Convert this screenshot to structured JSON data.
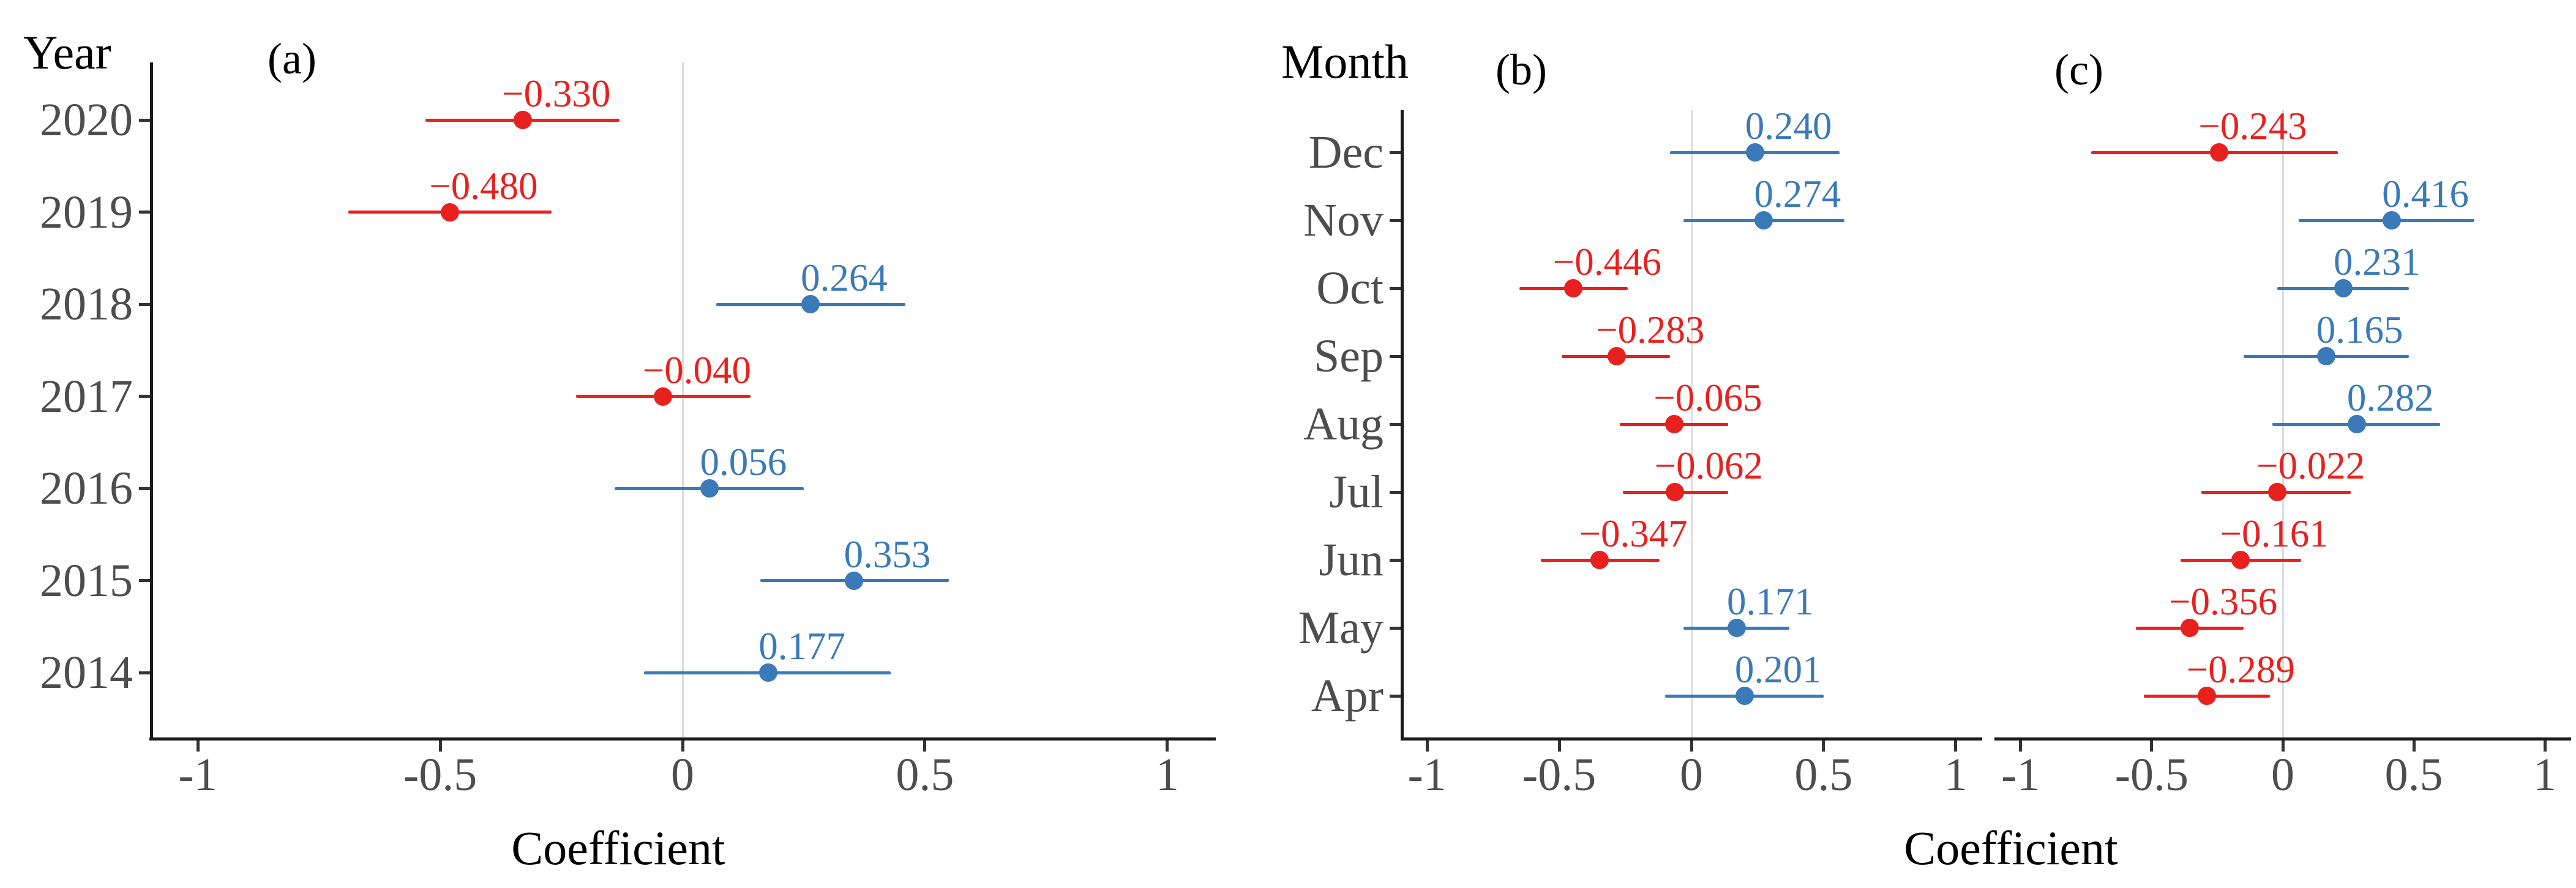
{
  "figure": {
    "left_axis_title": "Year",
    "right_axis_title": "Month",
    "left_xaxis_title": "Coefficient",
    "right_xaxis_title": "Coefficient"
  },
  "colors": {
    "positive": "#3a7ab8",
    "negative": "#e8201e",
    "axis": "#1a1a1a",
    "tick_label": "#4d4d4d",
    "gridline": "#dcdcdc"
  },
  "chart_data": [
    {
      "type": "scatter",
      "panel_label": "(a)",
      "ylabel": "Year",
      "xlabel": "Coefficient",
      "categories": [
        "2020",
        "2019",
        "2018",
        "2017",
        "2016",
        "2015",
        "2014"
      ],
      "values": [
        -0.33,
        -0.48,
        0.264,
        -0.04,
        0.056,
        0.353,
        0.177
      ],
      "value_labels": [
        "−0.330",
        "−0.480",
        "0.264",
        "−0.040",
        "0.056",
        "0.353",
        "0.177"
      ],
      "ci_low": [
        -0.53,
        -0.69,
        0.07,
        -0.22,
        -0.14,
        0.16,
        -0.08
      ],
      "ci_high": [
        -0.13,
        -0.27,
        0.46,
        0.14,
        0.25,
        0.55,
        0.43
      ],
      "xtick_values": [
        -1,
        -0.5,
        0,
        0.5,
        1
      ],
      "xtick_labels": [
        "-1",
        "-0.5",
        "0",
        "0.5",
        "1"
      ],
      "xlim": [
        -1.1,
        1.1
      ],
      "grid_zero_line": true,
      "legend": "none"
    },
    {
      "type": "scatter",
      "panel_label": "(b)",
      "ylabel": "Month",
      "xlabel": "Coefficient",
      "categories": [
        "Dec",
        "Nov",
        "Oct",
        "Sep",
        "Aug",
        "Jul",
        "Jun",
        "May",
        "Apr"
      ],
      "values": [
        0.24,
        0.274,
        -0.446,
        -0.283,
        -0.065,
        -0.062,
        -0.347,
        0.171,
        0.201
      ],
      "value_labels": [
        "0.240",
        "0.274",
        "−0.446",
        "−0.283",
        "−0.065",
        "−0.062",
        "−0.347",
        "0.171",
        "0.201"
      ],
      "ci_low": [
        -0.08,
        -0.03,
        -0.65,
        -0.49,
        -0.27,
        -0.26,
        -0.57,
        -0.03,
        -0.1
      ],
      "ci_high": [
        0.56,
        0.58,
        -0.24,
        -0.08,
        0.14,
        0.14,
        -0.12,
        0.37,
        0.5
      ],
      "xtick_values": [
        -1,
        -0.5,
        0,
        0.5,
        1
      ],
      "xtick_labels": [
        "-1",
        "-0.5",
        "0",
        "0.5",
        "1"
      ],
      "xlim": [
        -1.1,
        1.1
      ],
      "grid_zero_line": true,
      "legend": "none"
    },
    {
      "type": "scatter",
      "panel_label": "(c)",
      "ylabel": "Month",
      "xlabel": "Coefficient",
      "categories": [
        "Dec",
        "Nov",
        "Oct",
        "Sep",
        "Aug",
        "Jul",
        "Jun",
        "May",
        "Apr"
      ],
      "values": [
        -0.243,
        0.416,
        0.231,
        0.165,
        0.282,
        -0.022,
        -0.161,
        -0.356,
        -0.289
      ],
      "value_labels": [
        "−0.243",
        "0.416",
        "0.231",
        "0.165",
        "0.282",
        "−0.022",
        "−0.161",
        "−0.356",
        "−0.289"
      ],
      "ci_low": [
        -0.73,
        0.06,
        -0.02,
        -0.15,
        -0.04,
        -0.31,
        -0.39,
        -0.56,
        -0.53
      ],
      "ci_high": [
        0.21,
        0.73,
        0.48,
        0.48,
        0.6,
        0.26,
        0.07,
        -0.15,
        -0.05
      ],
      "xtick_values": [
        -1,
        -0.5,
        0,
        0.5,
        1
      ],
      "xtick_labels": [
        "-1",
        "-0.5",
        "0",
        "0.5",
        "1"
      ],
      "xlim": [
        -1.1,
        1.1
      ],
      "grid_zero_line": true,
      "legend": "none"
    }
  ]
}
